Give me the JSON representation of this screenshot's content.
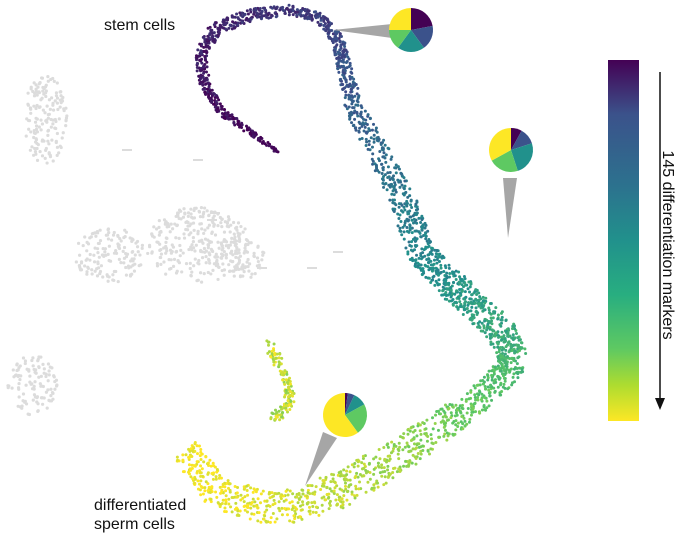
{
  "labels": {
    "stem": "stem cells",
    "differentiated_line1": "differentiated",
    "differentiated_line2": "sperm cells",
    "colorbar_title": "145 differentiation markers"
  },
  "colors": {
    "background_cells": "#dcdcdc",
    "arrow": "#111111",
    "callout_pointer": "#a6a6a6",
    "palette": [
      "#440154",
      "#3b528b",
      "#21918c",
      "#5ec962",
      "#fde725"
    ]
  },
  "colorbar": {
    "colormap": "viridis",
    "direction": "stem (top, dark purple) to differentiated (bottom, yellow)"
  },
  "pie_callouts": [
    {
      "id": "stem",
      "slices": [
        0.22,
        0.18,
        0.2,
        0.15,
        0.25
      ],
      "colors": [
        "#440154",
        "#3b528b",
        "#21918c",
        "#5ec962",
        "#fde725"
      ]
    },
    {
      "id": "middle",
      "slices": [
        0.08,
        0.12,
        0.25,
        0.22,
        0.33
      ],
      "colors": [
        "#440154",
        "#3b528b",
        "#21918c",
        "#5ec962",
        "#fde725"
      ]
    },
    {
      "id": "differentiated",
      "slices": [
        0.02,
        0.05,
        0.1,
        0.23,
        0.6
      ],
      "colors": [
        "#440154",
        "#3b528b",
        "#21918c",
        "#5ec962",
        "#fde725"
      ]
    }
  ]
}
